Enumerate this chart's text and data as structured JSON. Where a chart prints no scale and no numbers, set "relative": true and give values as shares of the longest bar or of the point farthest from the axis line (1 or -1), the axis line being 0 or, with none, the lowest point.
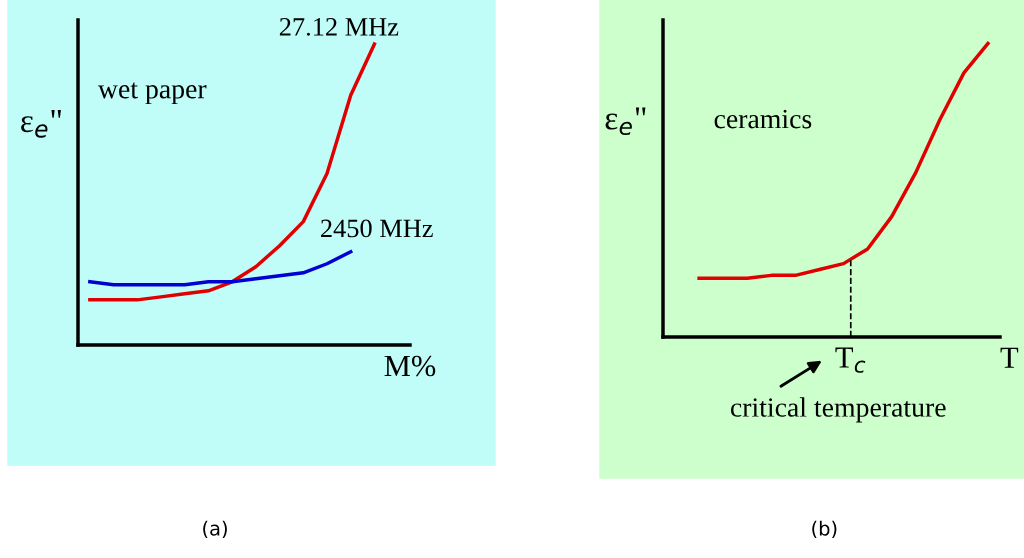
{
  "chart_data": [
    {
      "type": "line",
      "relative": true,
      "xlabel": "M%",
      "ylabel": "ε$_{e}$\"",
      "categories": [
        null,
        null,
        null,
        null,
        null,
        null,
        null,
        null,
        null,
        null,
        null,
        null,
        null,
        null
      ],
      "annotations": [
        "wet paper",
        "(a)"
      ],
      "series": [
        {
          "name": "27.12 MHz",
          "color": "#e00000",
          "values": [
            0.15,
            0.15,
            0.15,
            0.16,
            0.17,
            0.18,
            0.21,
            0.26,
            0.33,
            0.41,
            0.57,
            0.83,
            1,
            null
          ]
        },
        {
          "name": "2450 MHz",
          "color": "#0000d0",
          "values": [
            0.21,
            0.2,
            0.2,
            0.2,
            0.2,
            0.21,
            0.21,
            0.22,
            0.23,
            0.24,
            0.27,
            0.31,
            null,
            null
          ]
        }
      ]
    },
    {
      "type": "line",
      "relative": true,
      "xlabel": "T",
      "ylabel": "ε$_{e}$\"",
      "categories": [
        null,
        null,
        null,
        null,
        null,
        null,
        null,
        null,
        null,
        null,
        null,
        null,
        null,
        null
      ],
      "annotations": [
        "ceramics",
        "T$_{c}$",
        "critical temperature",
        "(b)"
      ],
      "series": [
        {
          "color": "#e00000",
          "values": [
            null,
            0.2,
            0.2,
            0.2,
            0.21,
            0.21,
            0.23,
            0.25,
            0.3,
            0.41,
            0.56,
            0.74,
            0.9,
            1
          ]
        }
      ]
    }
  ]
}
